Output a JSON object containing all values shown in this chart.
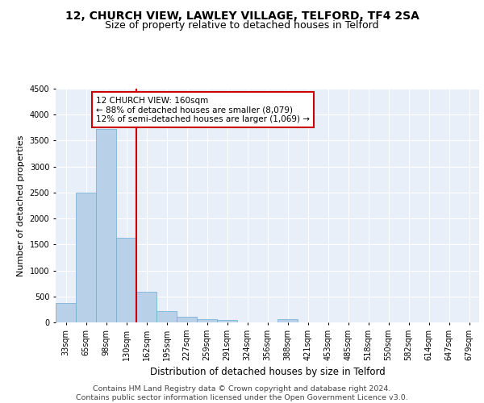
{
  "title1": "12, CHURCH VIEW, LAWLEY VILLAGE, TELFORD, TF4 2SA",
  "title2": "Size of property relative to detached houses in Telford",
  "xlabel": "Distribution of detached houses by size in Telford",
  "ylabel": "Number of detached properties",
  "categories": [
    "33sqm",
    "65sqm",
    "98sqm",
    "130sqm",
    "162sqm",
    "195sqm",
    "227sqm",
    "259sqm",
    "291sqm",
    "324sqm",
    "356sqm",
    "388sqm",
    "421sqm",
    "453sqm",
    "485sqm",
    "518sqm",
    "550sqm",
    "582sqm",
    "614sqm",
    "647sqm",
    "679sqm"
  ],
  "values": [
    370,
    2500,
    3720,
    1630,
    590,
    220,
    105,
    60,
    40,
    0,
    0,
    55,
    0,
    0,
    0,
    0,
    0,
    0,
    0,
    0,
    0
  ],
  "bar_color": "#b8d0e8",
  "bar_edge_color": "#6aaad4",
  "vline_x_index": 4,
  "vline_color": "#cc0000",
  "annotation_text": "12 CHURCH VIEW: 160sqm\n← 88% of detached houses are smaller (8,079)\n12% of semi-detached houses are larger (1,069) →",
  "annotation_box_color": "#ffffff",
  "annotation_box_edge_color": "#cc0000",
  "footer_text": "Contains HM Land Registry data © Crown copyright and database right 2024.\nContains public sector information licensed under the Open Government Licence v3.0.",
  "ylim": [
    0,
    4500
  ],
  "yticks": [
    0,
    500,
    1000,
    1500,
    2000,
    2500,
    3000,
    3500,
    4000,
    4500
  ],
  "bg_color": "#e8eff8",
  "grid_color": "#ffffff",
  "title1_fontsize": 10,
  "title2_fontsize": 9,
  "annotation_fontsize": 7.5,
  "ylabel_fontsize": 8,
  "xlabel_fontsize": 8.5,
  "footer_fontsize": 6.8,
  "tick_fontsize": 7
}
